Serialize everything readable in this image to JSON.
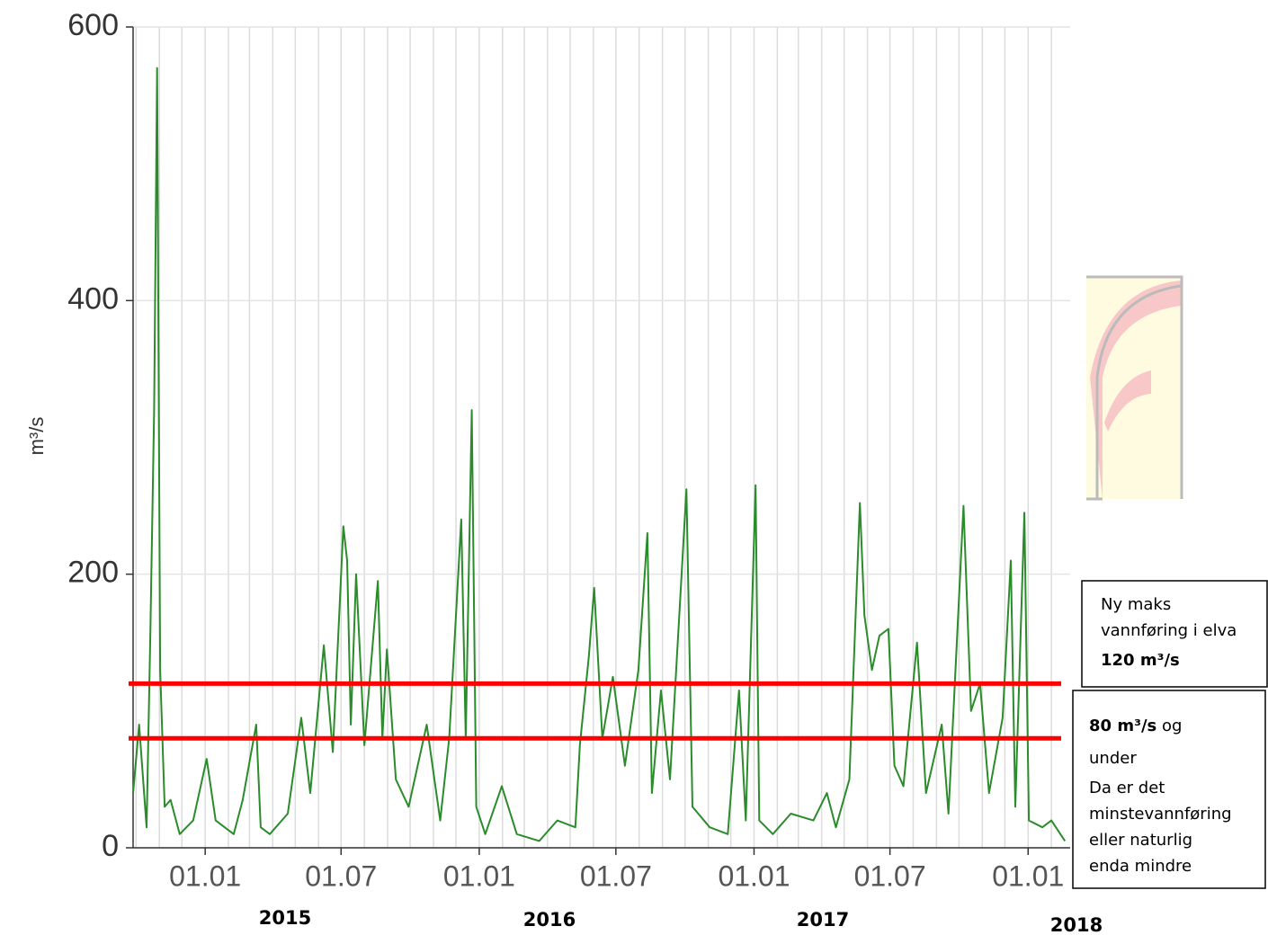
{
  "chart_data": {
    "type": "line",
    "y_label": "m³/s",
    "color": "#2a8c2a",
    "ylim": [
      0,
      600
    ],
    "yticks": [
      0,
      200,
      400,
      600
    ],
    "xlim": [
      "2014-09-27",
      "2018-02-26"
    ],
    "xticks": [
      {
        "value": "2015-01-01",
        "label": "01.01"
      },
      {
        "value": "2015-07-01",
        "label": "01.07"
      },
      {
        "value": "2016-01-01",
        "label": "01.01"
      },
      {
        "value": "2016-07-01",
        "label": "01.07"
      },
      {
        "value": "2017-01-01",
        "label": "01.01"
      },
      {
        "value": "2017-07-01",
        "label": "01.07"
      },
      {
        "value": "2018-01-01",
        "label": "01.01"
      }
    ],
    "xgrid": [
      "2014-10-01",
      "2014-11-01",
      "2014-12-01",
      "2015-01-01",
      "2015-02-01",
      "2015-03-01",
      "2015-04-01",
      "2015-05-01",
      "2015-06-01",
      "2015-07-01",
      "2015-08-01",
      "2015-09-01",
      "2015-10-01",
      "2015-11-01",
      "2015-12-01",
      "2016-01-01",
      "2016-02-01",
      "2016-03-01",
      "2016-04-01",
      "2016-05-01",
      "2016-06-01",
      "2016-07-01",
      "2016-08-01",
      "2016-09-01",
      "2016-10-01",
      "2016-11-01",
      "2016-12-01",
      "2017-01-01",
      "2017-02-01",
      "2017-03-01",
      "2017-04-01",
      "2017-05-01",
      "2017-06-01",
      "2017-07-01",
      "2017-08-01",
      "2017-09-01",
      "2017-10-01",
      "2017-11-01",
      "2017-12-01",
      "2018-01-01",
      "2018-02-01"
    ],
    "grid": true,
    "year_labels": [
      "2015",
      "2016",
      "2017",
      "2018"
    ],
    "x": [
      "2014-09-27",
      "2014-10-05",
      "2014-10-15",
      "2014-10-20",
      "2014-10-25",
      "2014-10-29",
      "2014-11-02",
      "2014-11-08",
      "2014-11-16",
      "2014-11-28",
      "2014-12-16",
      "2015-01-03",
      "2015-01-15",
      "2015-02-08",
      "2015-02-20",
      "2015-03-10",
      "2015-03-16",
      "2015-03-28",
      "2015-04-21",
      "2015-05-09",
      "2015-05-21",
      "2015-06-08",
      "2015-06-20",
      "2015-07-04",
      "2015-07-09",
      "2015-07-14",
      "2015-07-21",
      "2015-08-01",
      "2015-08-19",
      "2015-08-25",
      "2015-08-31",
      "2015-09-12",
      "2015-09-29",
      "2015-10-23",
      "2015-11-10",
      "2015-11-22",
      "2015-12-08",
      "2015-12-14",
      "2015-12-22",
      "2015-12-28",
      "2016-01-09",
      "2016-01-31",
      "2016-02-20",
      "2016-03-21",
      "2016-04-14",
      "2016-05-08",
      "2016-05-14",
      "2016-05-26",
      "2016-06-02",
      "2016-06-13",
      "2016-06-27",
      "2016-07-13",
      "2016-07-31",
      "2016-08-12",
      "2016-08-18",
      "2016-08-30",
      "2016-09-11",
      "2016-10-03",
      "2016-10-11",
      "2016-11-03",
      "2016-11-27",
      "2016-12-12",
      "2016-12-21",
      "2017-01-03",
      "2017-01-08",
      "2017-01-26",
      "2017-02-19",
      "2017-03-21",
      "2017-04-08",
      "2017-04-20",
      "2017-05-08",
      "2017-05-22",
      "2017-05-28",
      "2017-06-07",
      "2017-06-17",
      "2017-06-29",
      "2017-07-07",
      "2017-07-19",
      "2017-08-06",
      "2017-08-18",
      "2017-09-08",
      "2017-09-17",
      "2017-10-07",
      "2017-10-17",
      "2017-10-29",
      "2017-11-10",
      "2017-11-28",
      "2017-12-09",
      "2017-12-15",
      "2017-12-27",
      "2018-01-02",
      "2018-01-20",
      "2018-02-01",
      "2018-02-19"
    ],
    "values": [
      40,
      90,
      15,
      157,
      320,
      570,
      130,
      30,
      35,
      10,
      20,
      65,
      20,
      10,
      35,
      90,
      15,
      10,
      25,
      95,
      40,
      148,
      70,
      235,
      210,
      90,
      200,
      75,
      195,
      80,
      145,
      50,
      30,
      90,
      20,
      80,
      240,
      80,
      320,
      30,
      10,
      45,
      10,
      5,
      20,
      15,
      75,
      140,
      190,
      80,
      125,
      60,
      130,
      230,
      40,
      115,
      50,
      262,
      30,
      15,
      10,
      115,
      20,
      265,
      20,
      10,
      25,
      20,
      40,
      15,
      50,
      252,
      170,
      130,
      155,
      160,
      60,
      45,
      150,
      40,
      90,
      25,
      250,
      100,
      120,
      40,
      95,
      210,
      30,
      245,
      20,
      15,
      20,
      5
    ],
    "ref_lines": [
      {
        "value": 120,
        "color": "#ff0000"
      },
      {
        "value": 80,
        "color": "#ff0000"
      }
    ],
    "annotations": [
      {
        "lines": [
          "Ny maks",
          "vannføring i elva",
          "120 m³/s"
        ]
      },
      {
        "lines": [
          "80 m³/s",
          "og",
          "under",
          "Da er det",
          "minstevannføring",
          "eller naturlig",
          "enda mindre"
        ]
      }
    ]
  }
}
